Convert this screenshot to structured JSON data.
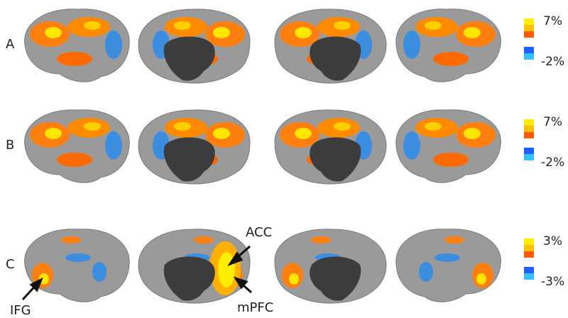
{
  "rows": [
    {
      "label": "A",
      "scale_max": "7%",
      "scale_min": "-2%"
    },
    {
      "label": "B",
      "scale_max": "7%",
      "scale_min": "-2%"
    },
    {
      "label": "C",
      "scale_max": "3%",
      "scale_min": "-3%"
    }
  ],
  "annotations": {
    "acc": "ACC",
    "mpfc": "mPFC",
    "ifg": "IFG"
  }
}
